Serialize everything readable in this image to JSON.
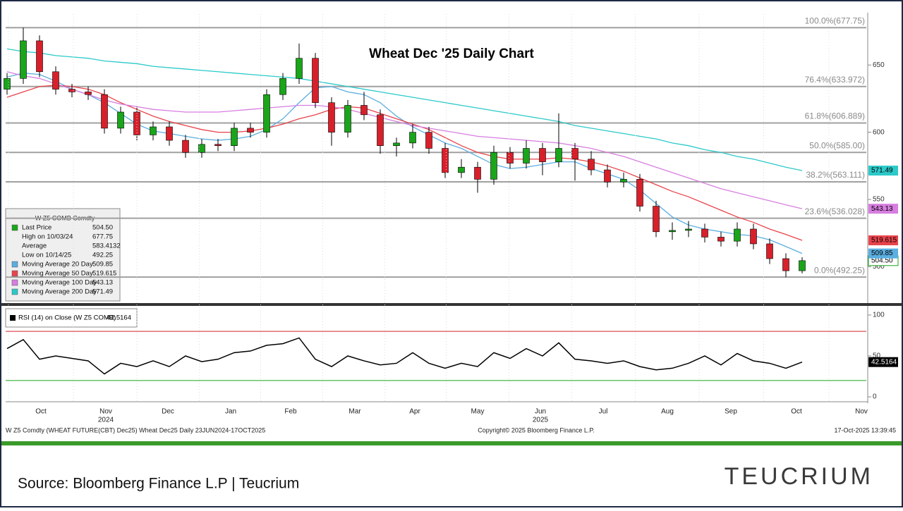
{
  "chart_data": [
    {
      "type": "candlestick",
      "title": "Wheat Dec '25 Daily Chart",
      "up_color": "#1aa51a",
      "down_color": "#d8202b",
      "open": [
        632,
        640,
        668,
        645,
        632,
        630,
        628,
        603,
        615,
        598,
        604,
        594,
        585,
        591,
        590,
        603,
        600,
        628,
        640,
        655,
        622,
        600,
        620,
        613,
        590,
        592,
        600,
        588,
        570,
        574,
        565,
        585,
        577,
        588,
        578,
        588,
        580,
        572,
        563,
        565,
        545,
        526,
        527,
        528,
        522,
        519,
        528,
        517,
        506,
        497
      ],
      "high": [
        644,
        677.75,
        672,
        649,
        636,
        634,
        632,
        619,
        619,
        608,
        608,
        598,
        595,
        595,
        607,
        607,
        632,
        644,
        666,
        659,
        626,
        624,
        630,
        617,
        596,
        606,
        604,
        592,
        580,
        578,
        590,
        589,
        594,
        592,
        614,
        592,
        586,
        576,
        570,
        569,
        549,
        533,
        534,
        532,
        526,
        533,
        532,
        521,
        510,
        507
      ],
      "low": [
        628,
        636,
        641,
        628,
        626,
        624,
        599,
        599,
        594,
        594,
        590,
        581,
        581,
        586,
        586,
        596,
        596,
        624,
        636,
        618,
        590,
        596,
        609,
        584,
        582,
        588,
        584,
        566,
        566,
        555,
        561,
        573,
        573,
        568,
        574,
        564,
        568,
        559,
        559,
        541,
        522,
        520,
        522,
        518,
        515,
        515,
        513,
        502,
        492.25,
        495
      ],
      "close": [
        640,
        668,
        645,
        632,
        630,
        628,
        603,
        615,
        598,
        604,
        594,
        585,
        591,
        590,
        603,
        600,
        628,
        640,
        655,
        622,
        600,
        620,
        613,
        590,
        592,
        600,
        588,
        570,
        574,
        565,
        585,
        577,
        588,
        578,
        588,
        580,
        572,
        563,
        565,
        545,
        526,
        527,
        528,
        522,
        519,
        528,
        517,
        506,
        497,
        504.5
      ],
      "series": [
        {
          "name": "Moving Average 20 Day",
          "color": "#5aaee0",
          "values": [
            641,
            644,
            643,
            638,
            632,
            628,
            622,
            614,
            606,
            601,
            599,
            597,
            595,
            594,
            595,
            597,
            602,
            610,
            622,
            633,
            634,
            630,
            628,
            622,
            612,
            604,
            598,
            592,
            588,
            582,
            576,
            573,
            574,
            576,
            578,
            578,
            573,
            569,
            565,
            557,
            547,
            537,
            531,
            528,
            526,
            524,
            523,
            520,
            515,
            509.85
          ]
        },
        {
          "name": "Moving Average 50 Day",
          "color": "#e8434b",
          "values": [
            626,
            630,
            634,
            635,
            634,
            632,
            628,
            622,
            617,
            612,
            608,
            605,
            602,
            600,
            600,
            601,
            603,
            606,
            610,
            613,
            617,
            619,
            618,
            614,
            610,
            606,
            602,
            596,
            590,
            585,
            582,
            580,
            580,
            580,
            581,
            580,
            578,
            575,
            571,
            566,
            561,
            556,
            552,
            547,
            542,
            537,
            533,
            528,
            524,
            519.615
          ]
        },
        {
          "name": "Moving Average 100 Day",
          "color": "#d77ee0",
          "values": [
            645,
            642,
            640,
            636,
            632,
            628,
            624,
            621,
            619,
            617,
            616,
            615,
            615,
            615,
            616,
            617,
            618,
            619,
            620,
            620,
            619,
            617,
            614,
            611,
            608,
            605,
            603,
            601,
            599,
            597,
            596,
            595,
            594,
            593,
            592,
            590,
            588,
            585,
            582,
            578,
            574,
            570,
            566,
            562,
            558,
            555,
            552,
            549,
            546,
            543.13
          ]
        },
        {
          "name": "Moving Average 200 Day",
          "color": "#2cc9c9",
          "values": [
            662,
            660,
            659,
            657,
            656,
            655,
            653,
            652,
            651,
            649,
            648,
            647,
            646,
            645,
            644,
            643,
            642,
            641,
            640,
            638,
            636,
            634,
            632,
            630,
            628,
            626,
            624,
            622,
            620,
            618,
            616,
            614,
            612,
            610,
            608,
            605,
            603,
            601,
            599,
            597,
            595,
            592,
            590,
            587,
            585,
            582,
            580,
            577,
            574,
            571.49
          ]
        }
      ],
      "fib_levels": [
        {
          "value": 677.75,
          "label": "100.0%(677.75)"
        },
        {
          "value": 633.972,
          "label": "76.4%(633.972)"
        },
        {
          "value": 606.889,
          "label": "61.8%(606.889)"
        },
        {
          "value": 585,
          "label": "50.0%(585.00)"
        },
        {
          "value": 563.111,
          "label": "38.2%(563.111)"
        },
        {
          "value": 536.028,
          "label": "23.6%(536.028)"
        },
        {
          "value": 492.25,
          "label": "0.0%(492.25)"
        }
      ],
      "ylim": [
        474,
        680
      ],
      "yticks": [
        500,
        550,
        600,
        650
      ],
      "info": {
        "title": "W Z5 COMB Comdty",
        "rows": [
          {
            "name": "Last Price",
            "value": "504.50"
          },
          {
            "name": "High on 10/03/24",
            "value": "677.75"
          },
          {
            "name": "Average",
            "value": "583.4132"
          },
          {
            "name": "Low on 10/14/25",
            "value": "492.25"
          }
        ]
      },
      "months": [
        "Oct",
        "Nov",
        "Dec",
        "Jan",
        "Feb",
        "Mar",
        "Apr",
        "May",
        "Jun",
        "Jul",
        "Aug",
        "Sep",
        "Oct",
        "Nov"
      ],
      "years": [
        "2024",
        "2025"
      ]
    },
    {
      "type": "line",
      "name": "RSI (14)  on Close (W Z5 COMB)",
      "color": "#000000",
      "values": [
        59,
        70,
        46,
        50,
        47,
        44,
        28,
        41,
        37,
        44,
        37,
        50,
        43,
        46,
        54,
        56,
        63,
        65,
        72,
        46,
        37,
        50,
        44,
        39,
        41,
        54,
        41,
        35,
        41,
        37,
        54,
        47,
        59,
        50,
        66,
        46,
        44,
        41,
        44,
        37,
        33,
        35,
        41,
        50,
        39,
        53,
        44,
        41,
        35,
        42.5164
      ],
      "ylim": [
        -6,
        106
      ],
      "yticks": [
        0,
        50,
        100
      ],
      "bands": [
        {
          "value": 80,
          "color": "#d8202b"
        },
        {
          "value": 20,
          "color": "#1aa51a"
        }
      ]
    }
  ],
  "footer": {
    "left": "W Z5 Comdty (WHEAT FUTURE(CBT) Dec25) Wheat Dec25 Daily 23JUN2024-17OCT2025",
    "center": "Copyright© 2025 Bloomberg Finance L.P.",
    "right": "17-Oct-2025 13:39:45"
  },
  "source": "Source: Bloomberg Finance L.P | Teucrium",
  "logo": "TEUCRIUM"
}
